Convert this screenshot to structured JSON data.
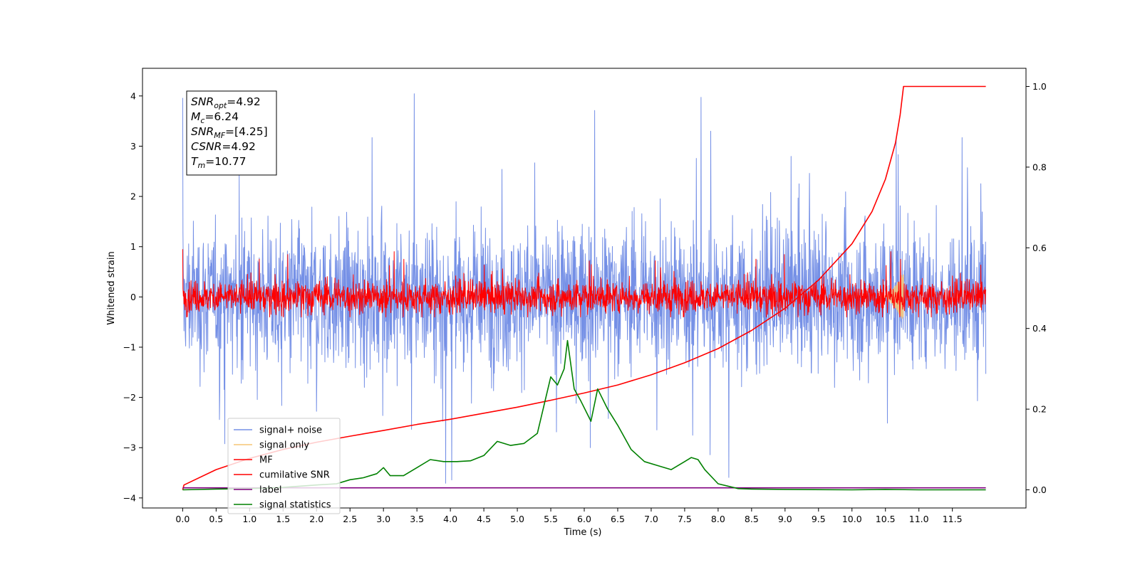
{
  "chart_data": {
    "type": "line",
    "xlabel": "Time (s)",
    "ylabel": "Whitened strain",
    "xlim": [
      -0.6,
      12.6
    ],
    "ylim": [
      -4.2,
      4.55
    ],
    "y2lim": [
      -0.045,
      1.045
    ],
    "xticks": [
      "0.0",
      "0.5",
      "1.0",
      "1.5",
      "2.0",
      "2.5",
      "3.0",
      "3.5",
      "4.0",
      "4.5",
      "5.0",
      "5.5",
      "6.0",
      "6.5",
      "7.0",
      "7.5",
      "8.0",
      "8.5",
      "9.0",
      "9.5",
      "10.0",
      "10.5",
      "11.0",
      "11.5"
    ],
    "yticks": [
      "4",
      "3",
      "2",
      "1",
      "0",
      "−1",
      "−2",
      "−3",
      "−4"
    ],
    "y2ticks": [
      "1.0",
      "0.8",
      "0.6",
      "0.4",
      "0.2",
      "0.0"
    ],
    "annotation": {
      "lines": [
        {
          "base": "SNR",
          "sub": "opt",
          "rest": "=4.92"
        },
        {
          "base": "M",
          "sub": "c",
          "rest": "=6.24"
        },
        {
          "base": "SNR",
          "sub": "MF",
          "rest": "=[4.25]"
        },
        {
          "base": "CSNR",
          "sub": "",
          "rest": "=4.92"
        },
        {
          "base": "T",
          "sub": "m",
          "rest": "=10.77"
        }
      ]
    },
    "legend": {
      "placement": "lower-left",
      "entries": [
        {
          "label": "signal+ noise",
          "color": "#7590e6"
        },
        {
          "label": "signal only",
          "color": "#f6c675"
        },
        {
          "label": "MF",
          "color": "#ff0000"
        },
        {
          "label": "cumilative SNR",
          "color": "#ff0000"
        },
        {
          "label": "label",
          "color": "#800080"
        },
        {
          "label": "signal statistics",
          "color": "#008000"
        }
      ]
    },
    "series": [
      {
        "name": "signal+ noise",
        "kind": "noise",
        "axis": "left",
        "x_range": [
          0.0,
          12.0
        ],
        "center": 0.0,
        "spread": 1.1,
        "min": -3.8,
        "max": 4.17,
        "color": "#7590e6"
      },
      {
        "name": "signal only",
        "kind": "chirp",
        "axis": "left",
        "x_range": [
          10.4,
          10.77
        ],
        "peak": 0.5,
        "color": "#f6c675"
      },
      {
        "name": "MF",
        "kind": "noise",
        "axis": "left",
        "x_range": [
          0.0,
          12.0
        ],
        "center": 0.0,
        "spread": 0.25,
        "min": -0.4,
        "max": 1.0,
        "color": "#ff0000"
      },
      {
        "name": "cumilative SNR",
        "kind": "line",
        "axis": "right",
        "color": "#ff0000",
        "x": [
          0.0,
          0.02,
          0.5,
          1.0,
          1.5,
          2.0,
          2.5,
          3.0,
          3.5,
          4.0,
          4.5,
          5.0,
          5.5,
          6.0,
          6.5,
          7.0,
          7.5,
          8.0,
          8.5,
          9.0,
          9.5,
          10.0,
          10.3,
          10.5,
          10.65,
          10.72,
          10.77,
          11.0,
          11.5,
          12.0
        ],
        "y": [
          0.0,
          0.012,
          0.05,
          0.078,
          0.1,
          0.118,
          0.133,
          0.147,
          0.162,
          0.175,
          0.19,
          0.205,
          0.222,
          0.24,
          0.26,
          0.285,
          0.315,
          0.35,
          0.395,
          0.45,
          0.52,
          0.61,
          0.69,
          0.77,
          0.86,
          0.93,
          1.0,
          1.0,
          1.0,
          1.0
        ]
      },
      {
        "name": "label",
        "kind": "line",
        "axis": "left",
        "color": "#800080",
        "x": [
          0.0,
          12.0
        ],
        "y": [
          -3.8,
          -3.8
        ]
      },
      {
        "name": "signal statistics",
        "kind": "line",
        "axis": "right",
        "color": "#008000",
        "x": [
          0.0,
          0.5,
          1.0,
          1.5,
          2.0,
          2.3,
          2.5,
          2.7,
          2.9,
          3.0,
          3.1,
          3.3,
          3.5,
          3.7,
          3.9,
          4.1,
          4.3,
          4.5,
          4.7,
          4.9,
          5.1,
          5.3,
          5.5,
          5.6,
          5.7,
          5.75,
          5.85,
          5.95,
          6.1,
          6.2,
          6.35,
          6.5,
          6.7,
          6.9,
          7.1,
          7.3,
          7.5,
          7.6,
          7.7,
          7.8,
          8.0,
          8.3,
          8.5,
          9.0,
          10.0,
          10.5,
          11.0,
          12.0
        ],
        "y": [
          0.0,
          0.002,
          0.003,
          0.006,
          0.012,
          0.015,
          0.025,
          0.03,
          0.04,
          0.055,
          0.035,
          0.035,
          0.055,
          0.075,
          0.07,
          0.07,
          0.072,
          0.085,
          0.12,
          0.11,
          0.115,
          0.14,
          0.28,
          0.26,
          0.3,
          0.37,
          0.25,
          0.22,
          0.17,
          0.25,
          0.2,
          0.16,
          0.1,
          0.07,
          0.06,
          0.05,
          0.07,
          0.08,
          0.075,
          0.05,
          0.015,
          0.003,
          0.002,
          0.001,
          0.0,
          0.001,
          0.0,
          0.0
        ]
      }
    ]
  }
}
